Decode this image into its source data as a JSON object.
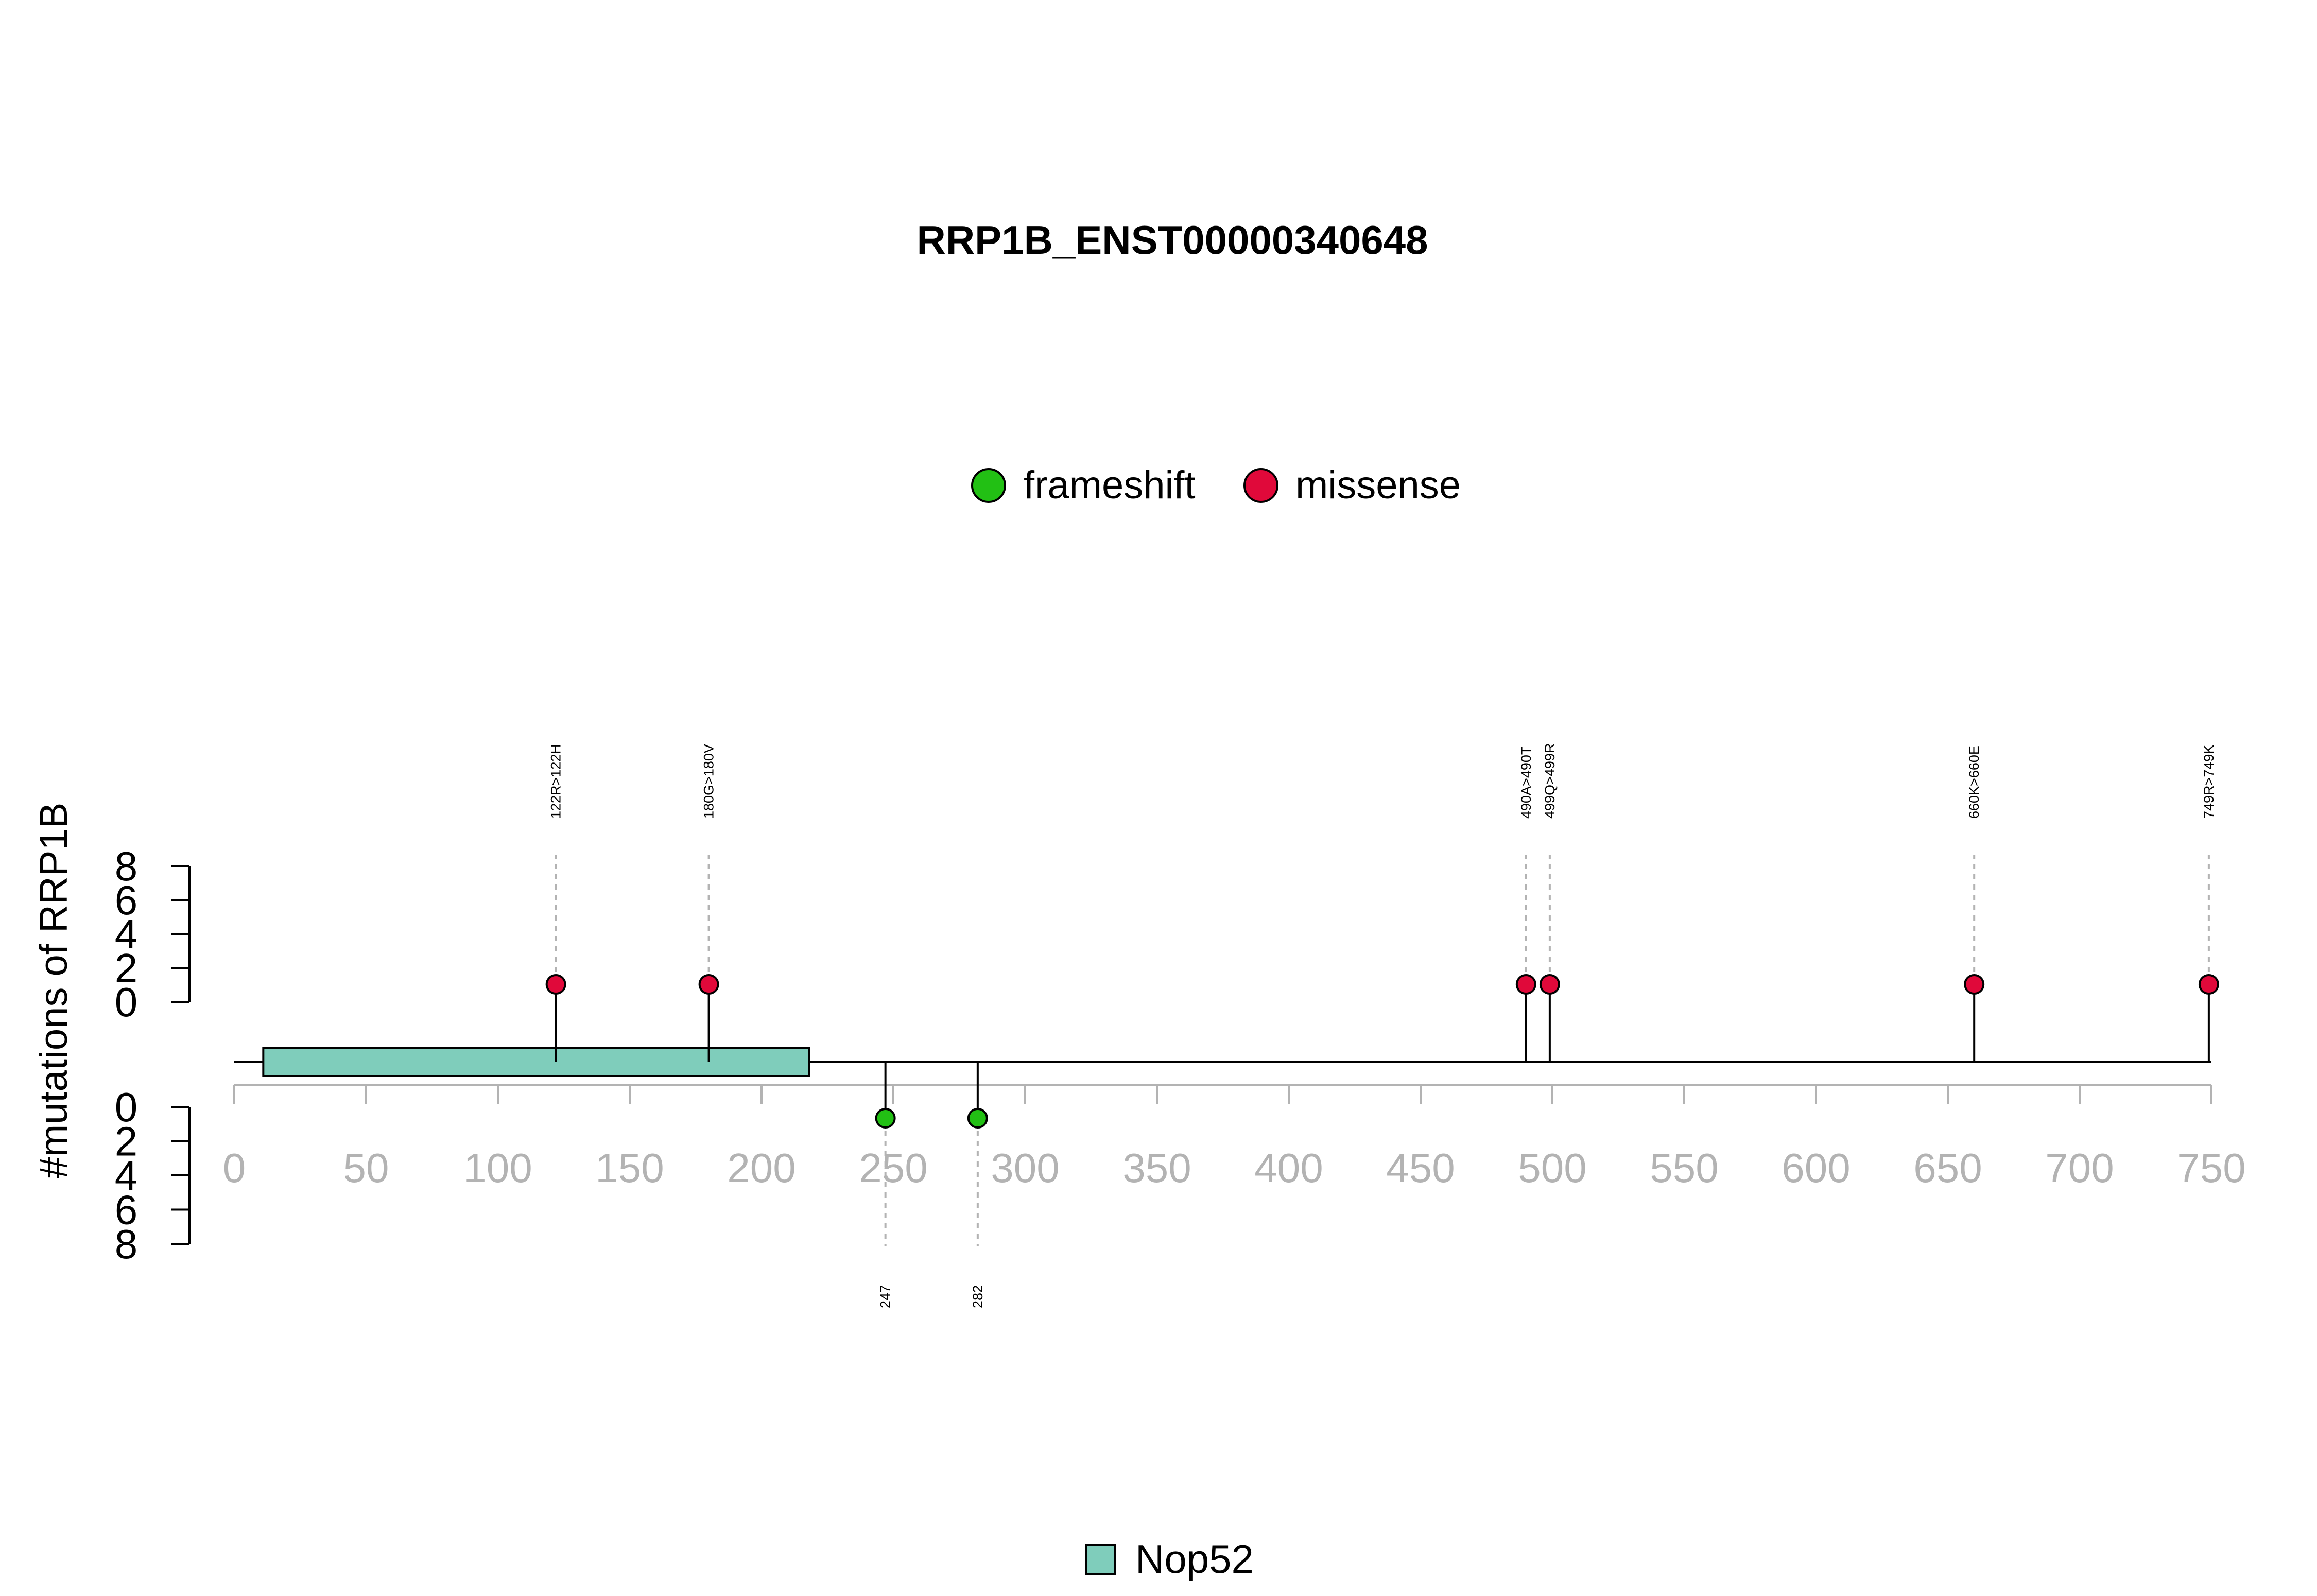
{
  "chart_data": {
    "type": "lollipop",
    "title": "RRP1B_ENST00000340648",
    "ylabel": "#mutations of RRP1B",
    "xlim": [
      0,
      750
    ],
    "x_ticks": [
      0,
      50,
      100,
      150,
      200,
      250,
      300,
      350,
      400,
      450,
      500,
      550,
      600,
      650,
      700,
      750
    ],
    "y_ticks_top": [
      0,
      2,
      4,
      6,
      8
    ],
    "y_ticks_bottom": [
      0,
      2,
      4,
      6,
      8
    ],
    "legend": [
      {
        "name": "frameshift",
        "color": "#22C014"
      },
      {
        "name": "missense",
        "color": "#E0093A"
      }
    ],
    "mutations_top": [
      {
        "position": 122,
        "label": "122R>122H",
        "type": "missense",
        "count": 1
      },
      {
        "position": 180,
        "label": "180G>180V",
        "type": "missense",
        "count": 1
      },
      {
        "position": 490,
        "label": "490A>490T",
        "type": "missense",
        "count": 1
      },
      {
        "position": 499,
        "label": "499Q>499R",
        "type": "missense",
        "count": 1
      },
      {
        "position": 660,
        "label": "660K>660E",
        "type": "missense",
        "count": 1
      },
      {
        "position": 749,
        "label": "749R>749K",
        "type": "missense",
        "count": 1
      }
    ],
    "mutations_bottom": [
      {
        "position": 247,
        "label": "247",
        "type": "frameshift",
        "count": 1
      },
      {
        "position": 282,
        "label": "282",
        "type": "frameshift",
        "count": 1
      }
    ],
    "domains": [
      {
        "name": "Nop52",
        "start": 11,
        "end": 218,
        "color": "#7FCDBB"
      }
    ],
    "domain_legend_label": "Nop52"
  }
}
